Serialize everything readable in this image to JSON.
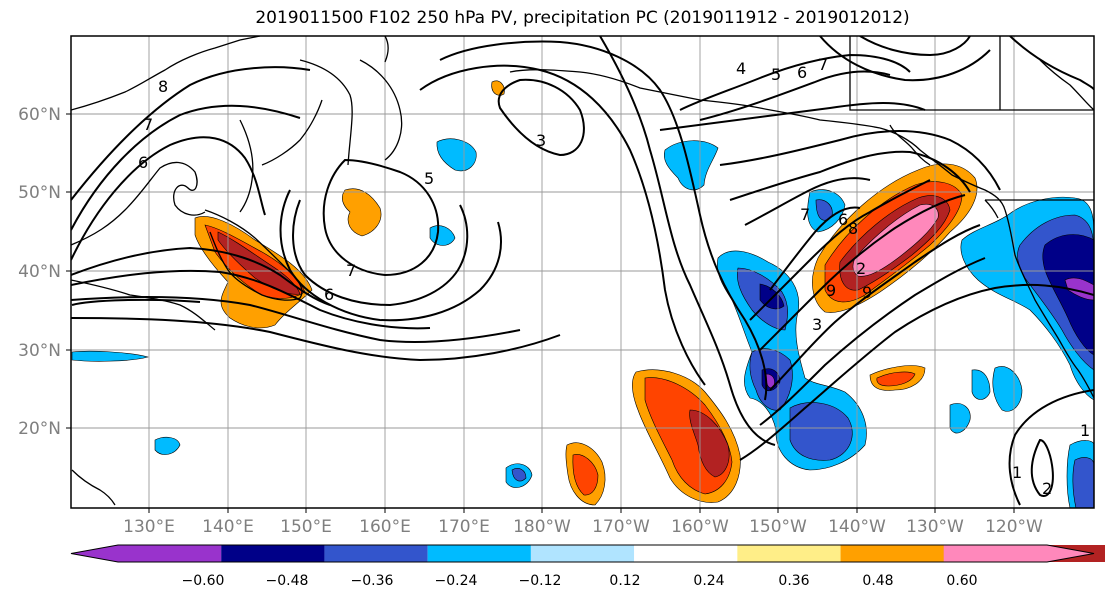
{
  "title": "2019011500 F102 250 hPa PV, precipitation PC (2019011912 - 2019012012)",
  "map": {
    "lat_ticks": [
      "60°N",
      "50°N",
      "40°N",
      "30°N",
      "20°N"
    ],
    "lon_ticks": [
      "130°E",
      "140°E",
      "150°E",
      "160°E",
      "170°E",
      "180°W",
      "170°W",
      "160°W",
      "150°W",
      "140°W",
      "130°W",
      "120°W"
    ],
    "contour_labels": [
      "8",
      "7",
      "6",
      "5",
      "7",
      "6",
      "3",
      "4",
      "5",
      "6",
      "7",
      "7",
      "6",
      "8",
      "9",
      "2",
      "3",
      "9",
      "1",
      "2",
      "1"
    ]
  },
  "colorbar": {
    "colors": [
      "#9933cc",
      "#000088",
      "#3355cc",
      "#00bbff",
      "#b0e4ff",
      "#ffffff",
      "#ffee88",
      "#ffa000",
      "#ff4400",
      "#b22222",
      "#ff88bb"
    ],
    "labels": [
      "−0.60",
      "−0.48",
      "−0.36",
      "−0.24",
      "−0.12",
      "0.12",
      "0.24",
      "0.36",
      "0.48",
      "0.60"
    ]
  }
}
